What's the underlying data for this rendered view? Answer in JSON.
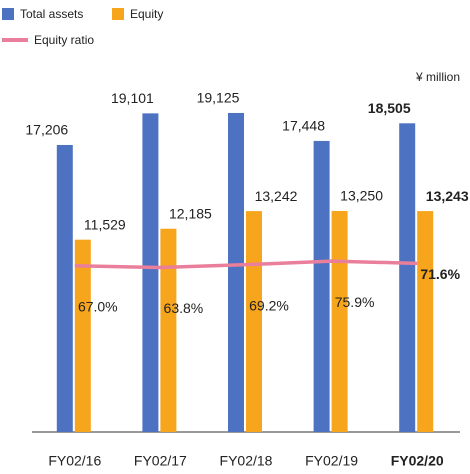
{
  "chart_data": {
    "type": "bar",
    "y_label": "¥ million",
    "categories": [
      "FY02/16",
      "FY02/17",
      "FY02/18",
      "FY02/19",
      "FY02/20"
    ],
    "series": [
      {
        "name": "Total assets",
        "color": "#4e72c2",
        "values": [
          17206,
          19101,
          19125,
          17448,
          18505
        ],
        "value_labels": [
          "17,206",
          "19,101",
          "19,125",
          "17,448",
          "18,505"
        ]
      },
      {
        "name": "Equity",
        "color": "#f7a51c",
        "values": [
          11529,
          12185,
          13242,
          13250,
          13243
        ],
        "value_labels": [
          "11,529",
          "12,185",
          "13,242",
          "13,250",
          "13,243"
        ]
      },
      {
        "name": "Equity ratio",
        "type": "line",
        "axis": "y2",
        "color": "#e97f9b",
        "values": [
          67.0,
          63.8,
          69.2,
          75.9,
          71.6
        ],
        "value_labels": [
          "67.0%",
          "63.8%",
          "69.2%",
          "75.9%",
          "71.6%"
        ]
      }
    ],
    "ylim": [
      0,
      22000
    ],
    "y2lim": [
      -250,
      450
    ],
    "legend": "top-left"
  }
}
